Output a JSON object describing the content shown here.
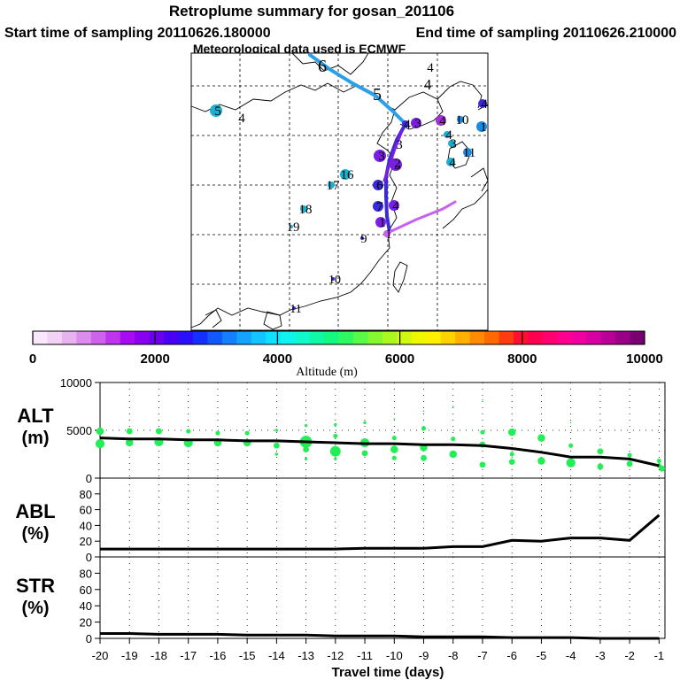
{
  "header": {
    "title": "Retroplume summary for gosan_201106",
    "start_label": "Start time of sampling 20110626.180000",
    "end_label": "End time of sampling 20110626.210000",
    "met_label": "Meteorological data used is ECMWF"
  },
  "colors": {
    "alt_dots": "#22ee55",
    "line": "#000000",
    "path_main": "#3a2ad8",
    "path_purple": "#7a1ee0",
    "path_blue": "#2aa0e8",
    "path_violet": "#c860f0"
  },
  "colorbar": {
    "ticks": [
      "0",
      "2000",
      "4000",
      "6000",
      "8000",
      "10000"
    ],
    "label": "Altitude (m)",
    "colors": [
      "#f9e8fb",
      "#f2d2f6",
      "#e8b2f1",
      "#dc8ced",
      "#cf62ea",
      "#bd36ec",
      "#a60cf2",
      "#8a00f0",
      "#6a00ee",
      "#4a00f2",
      "#2a10f8",
      "#1430ff",
      "#1258ff",
      "#1480ff",
      "#14a4ff",
      "#12c4ff",
      "#10e0ff",
      "#10f4f0",
      "#10f8cc",
      "#10f8a6",
      "#14f880",
      "#30f860",
      "#5af848",
      "#84f830",
      "#aaf820",
      "#d0f810",
      "#f0f800",
      "#fff000",
      "#ffd200",
      "#ffb000",
      "#ff8c00",
      "#ff6a00",
      "#ff3c10",
      "#ff1030",
      "#ff0050",
      "#ff0070",
      "#ff0090",
      "#f000a0",
      "#d800a0",
      "#b80098",
      "#980088",
      "#780070"
    ]
  },
  "map": {
    "markers": [
      {
        "label": "6",
        "color": "#2aa0e8"
      },
      {
        "label": "5",
        "color": "#2a40e8"
      },
      {
        "label": "4",
        "color": "#2a60e8"
      },
      {
        "label": "5",
        "color": "#1ab0d0"
      },
      {
        "label": "4",
        "color": "#1ab0d0"
      },
      {
        "label": "4",
        "color": "#3a2ad8"
      },
      {
        "label": "3",
        "color": "#7a1ee0"
      },
      {
        "label": "3",
        "color": "#3a2ad8"
      },
      {
        "label": "4",
        "color": "#a030d8"
      },
      {
        "label": "3",
        "color": "#7a1ee0"
      },
      {
        "label": "3",
        "color": "#7a1ee0"
      },
      {
        "label": "6",
        "color": "#3a2ad8"
      },
      {
        "label": "7",
        "color": "#3a2ad8"
      },
      {
        "label": "16",
        "color": "#1ab0d0"
      },
      {
        "label": "17",
        "color": "#1ab0d0"
      },
      {
        "label": "18",
        "color": "#1ab0d0"
      },
      {
        "label": "19",
        "color": "#1ab0d0"
      },
      {
        "label": "9",
        "color": "#3a2ad8"
      },
      {
        "label": "10",
        "color": "#3a2ad8"
      },
      {
        "label": "11",
        "color": "#3a2ad8"
      },
      {
        "label": "1",
        "color": "#7a1ee0"
      },
      {
        "label": "1",
        "color": "#c860f0"
      },
      {
        "label": "4",
        "color": "#7a1ee0"
      },
      {
        "label": "10",
        "color": "#1a8ae0"
      },
      {
        "label": "1",
        "color": "#1a8ae0"
      },
      {
        "label": "4",
        "color": "#1ab0d0"
      },
      {
        "label": "11",
        "color": "#1a8ae0"
      },
      {
        "label": "4",
        "color": "#1ab0d0"
      },
      {
        "label": "3",
        "color": "#1ab0d0"
      },
      {
        "label": "4",
        "color": "#3a2ad8"
      },
      {
        "label": "2",
        "color": "#7a1ee0"
      },
      {
        "label": "4",
        "color": "#7a1ee0"
      }
    ]
  },
  "chart_data": [
    {
      "type": "scatter",
      "panel": "ALT",
      "ylabel": "ALT",
      "yunit": "(m)",
      "ylim": [
        0,
        10000
      ],
      "xlim": [
        -20,
        -0.8
      ],
      "x_ticks": [
        "-20",
        "-19",
        "-18",
        "-17",
        "-16",
        "-15",
        "-14",
        "-13",
        "-12",
        "-11",
        "-10",
        "-9",
        "-8",
        "-7",
        "-6",
        "-5",
        "-4",
        "-3",
        "-2",
        "-1"
      ],
      "y_ticks": [
        "0",
        "5000",
        "10000"
      ],
      "series": [
        {
          "name": "mean_altitude",
          "style": "line",
          "x": [
            -20,
            -19,
            -18,
            -17,
            -16,
            -15,
            -14,
            -13,
            -12,
            -11,
            -10,
            -9,
            -8,
            -7,
            -6,
            -5,
            -4,
            -3,
            -2,
            -1
          ],
          "y": [
            4200,
            4100,
            4100,
            4000,
            4000,
            3900,
            3900,
            3800,
            3700,
            3600,
            3600,
            3500,
            3500,
            3400,
            3100,
            2700,
            2200,
            2200,
            2000,
            1300
          ]
        },
        {
          "name": "particle_altitudes",
          "style": "dots",
          "points": [
            [
              -20,
              4900,
              5
            ],
            [
              -20,
              3600,
              6
            ],
            [
              -19,
              4900,
              4
            ],
            [
              -19,
              3700,
              5
            ],
            [
              -18,
              4900,
              4
            ],
            [
              -18,
              3800,
              6
            ],
            [
              -17,
              4900,
              3
            ],
            [
              -17,
              3700,
              6
            ],
            [
              -16,
              4700,
              3
            ],
            [
              -16,
              3700,
              5
            ],
            [
              -15,
              4700,
              3
            ],
            [
              -15,
              3700,
              5
            ],
            [
              -14,
              5000,
              2
            ],
            [
              -14,
              3400,
              4
            ],
            [
              -14,
              2500,
              2
            ],
            [
              -13,
              5500,
              2
            ],
            [
              -13,
              3800,
              8
            ],
            [
              -13,
              3000,
              4
            ],
            [
              -13,
              2000,
              2
            ],
            [
              -12,
              5600,
              2
            ],
            [
              -12,
              4400,
              3
            ],
            [
              -12,
              2800,
              7
            ],
            [
              -12,
              2000,
              2
            ],
            [
              -11,
              5800,
              2
            ],
            [
              -11,
              3700,
              6
            ],
            [
              -11,
              2600,
              4
            ],
            [
              -10,
              6200,
              1
            ],
            [
              -10,
              4200,
              3
            ],
            [
              -10,
              3000,
              5
            ],
            [
              -10,
              2100,
              3
            ],
            [
              -9,
              7000,
              1
            ],
            [
              -9,
              5200,
              3
            ],
            [
              -9,
              3200,
              5
            ],
            [
              -9,
              2100,
              4
            ],
            [
              -8,
              7500,
              1
            ],
            [
              -8,
              4100,
              3
            ],
            [
              -8,
              2500,
              5
            ],
            [
              -7,
              8200,
              1
            ],
            [
              -7,
              4800,
              3
            ],
            [
              -7,
              3500,
              4
            ],
            [
              -7,
              1400,
              4
            ],
            [
              -6,
              4800,
              5
            ],
            [
              -6,
              2500,
              3
            ],
            [
              -6,
              1700,
              4
            ],
            [
              -5,
              4200,
              5
            ],
            [
              -5,
              1800,
              5
            ],
            [
              -4,
              5800,
              1
            ],
            [
              -4,
              3400,
              3
            ],
            [
              -4,
              1600,
              6
            ],
            [
              -3,
              2800,
              4
            ],
            [
              -3,
              1200,
              4
            ],
            [
              -2,
              2400,
              3
            ],
            [
              -2,
              1500,
              4
            ],
            [
              -1,
              1800,
              3
            ],
            [
              -1,
              1300,
              3
            ],
            [
              -0.9,
              1000,
              4
            ]
          ]
        }
      ]
    },
    {
      "type": "line",
      "panel": "ABL",
      "ylabel": "ABL",
      "yunit": "(%)",
      "ylim": [
        0,
        100
      ],
      "y_ticks": [
        "0",
        "20",
        "40",
        "60",
        "80"
      ],
      "x": [
        -20,
        -19,
        -18,
        -17,
        -16,
        -15,
        -14,
        -13,
        -12,
        -11,
        -10,
        -9,
        -8,
        -7,
        -6,
        -5,
        -4,
        -3,
        -2,
        -1
      ],
      "values": [
        10,
        10,
        10,
        10,
        10,
        10,
        10,
        10,
        10,
        11,
        11,
        11,
        13,
        13,
        21,
        20,
        24,
        24,
        21,
        53
      ]
    },
    {
      "type": "line",
      "panel": "STR",
      "ylabel": "STR",
      "yunit": "(%)",
      "ylim": [
        0,
        100
      ],
      "y_ticks": [
        "0",
        "20",
        "40",
        "60",
        "80"
      ],
      "x": [
        -20,
        -19,
        -18,
        -17,
        -16,
        -15,
        -14,
        -13,
        -12,
        -11,
        -10,
        -9,
        -8,
        -7,
        -6,
        -5,
        -4,
        -3,
        -2,
        -1
      ],
      "values": [
        6,
        6,
        5,
        5,
        5,
        4,
        4,
        4,
        3,
        3,
        3,
        2,
        2,
        2,
        1,
        1,
        1,
        0,
        0,
        0
      ],
      "xlabel": "Travel time (days)"
    }
  ]
}
